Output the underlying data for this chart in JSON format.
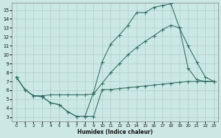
{
  "bg_color": "#cce8e4",
  "grid_color": "#aacfca",
  "line_color": "#2a6e64",
  "xlabel": "Humidex (Indice chaleur)",
  "xlim": [
    -0.5,
    23.5
  ],
  "ylim": [
    2.5,
    15.8
  ],
  "xticks": [
    0,
    1,
    2,
    3,
    4,
    5,
    6,
    7,
    8,
    9,
    10,
    11,
    12,
    13,
    14,
    15,
    16,
    17,
    18,
    19,
    20,
    21,
    22,
    23
  ],
  "yticks": [
    3,
    4,
    5,
    6,
    7,
    8,
    9,
    10,
    11,
    12,
    13,
    14,
    15
  ],
  "line1_x": [
    0,
    1,
    2,
    3,
    4,
    5,
    6,
    7,
    8,
    9,
    10,
    11,
    12,
    13,
    14,
    15,
    16,
    17,
    18,
    19,
    20,
    21,
    22,
    23
  ],
  "line1_y": [
    7.5,
    6.1,
    5.4,
    5.3,
    4.6,
    4.4,
    3.6,
    3.1,
    3.1,
    5.8,
    9.2,
    11.2,
    12.2,
    13.3,
    14.7,
    14.7,
    15.3,
    15.5,
    15.7,
    13.0,
    8.5,
    7.2,
    7.0,
    7.0
  ],
  "line2_x": [
    0,
    1,
    2,
    3,
    4,
    5,
    6,
    7,
    8,
    9,
    10,
    11,
    12,
    13,
    14,
    15,
    16,
    17,
    18,
    19,
    20,
    21,
    22,
    23
  ],
  "line2_y": [
    7.5,
    6.1,
    5.4,
    5.3,
    4.6,
    4.4,
    3.6,
    3.1,
    3.1,
    3.1,
    6.1,
    6.1,
    6.2,
    6.3,
    6.4,
    6.5,
    6.6,
    6.7,
    6.8,
    6.9,
    7.0,
    7.0,
    7.0,
    7.0
  ],
  "line3_x": [
    0,
    1,
    2,
    3,
    4,
    5,
    6,
    7,
    8,
    9,
    10,
    11,
    12,
    13,
    14,
    15,
    16,
    17,
    18,
    19,
    20,
    21,
    22,
    23
  ],
  "line3_y": [
    7.5,
    6.1,
    5.4,
    5.4,
    5.5,
    5.5,
    5.5,
    5.5,
    5.5,
    5.6,
    6.8,
    8.0,
    9.0,
    10.0,
    10.8,
    11.5,
    12.1,
    12.8,
    13.3,
    13.0,
    11.0,
    9.2,
    7.5,
    7.0
  ]
}
